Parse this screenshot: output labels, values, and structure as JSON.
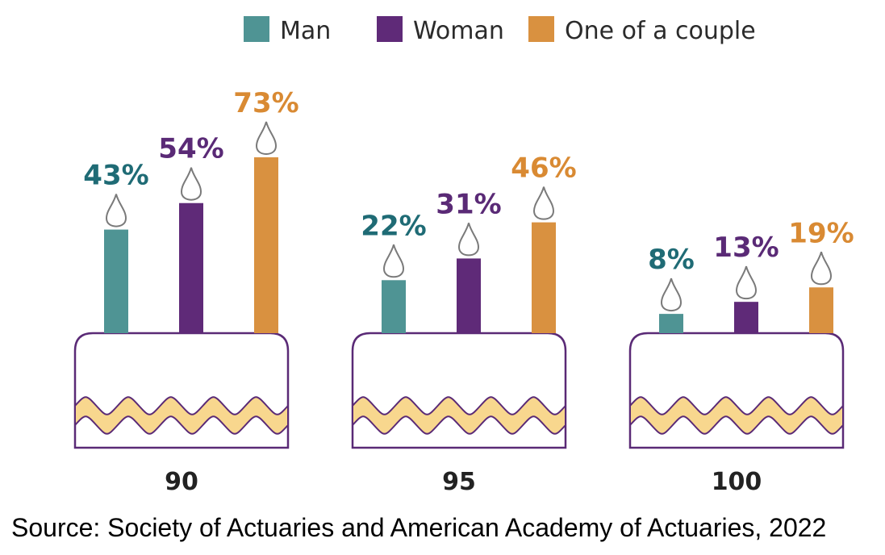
{
  "chart_data": {
    "type": "bar",
    "categories": [
      "90",
      "95",
      "100"
    ],
    "series": [
      {
        "name": "Man",
        "values": [
          43,
          22,
          8
        ],
        "labels": [
          "43%",
          "22%",
          "8%"
        ],
        "color": "#4f9494",
        "label_color": "#1f6b75"
      },
      {
        "name": "Woman",
        "values": [
          54,
          31,
          13
        ],
        "labels": [
          "54%",
          "31%",
          "13%"
        ],
        "color": "#5f2a78",
        "label_color": "#5a2a76"
      },
      {
        "name": "One of a couple",
        "values": [
          73,
          46,
          19
        ],
        "labels": [
          "73%",
          "46%",
          "19%"
        ],
        "color": "#d99140",
        "label_color": "#d98a33"
      }
    ],
    "legend_position": "top",
    "grid": false,
    "ylim": [
      0,
      100
    ]
  },
  "source": "Source: Society of Actuaries and American Academy of Actuaries, 2022",
  "colors": {
    "cake_outline": "#5a2a76",
    "cake_fill": "#ffffff",
    "icing_fill": "#f8d78e",
    "icing_stroke": "#5a2a76",
    "flame_stroke": "#7a7a7a"
  }
}
